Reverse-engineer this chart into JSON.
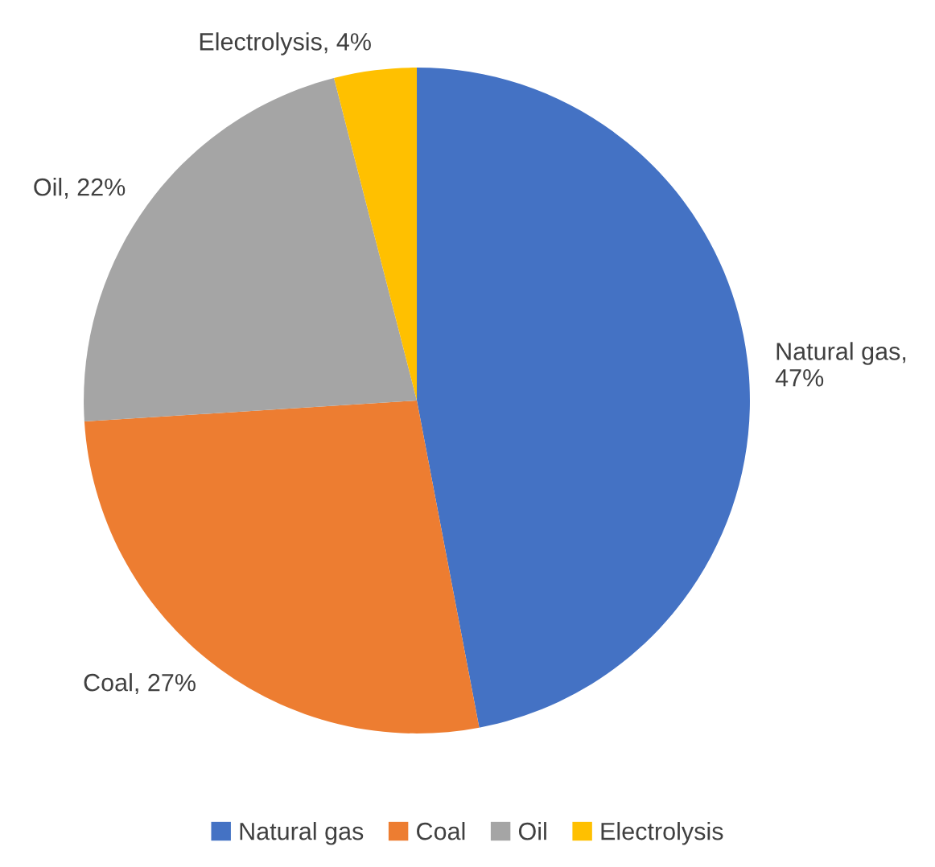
{
  "chart_data": {
    "type": "pie",
    "categories": [
      "Natural gas",
      "Coal",
      "Oil",
      "Electrolysis"
    ],
    "values": [
      47,
      27,
      22,
      4
    ],
    "colors": [
      "#4472c4",
      "#ed7d31",
      "#a5a5a5",
      "#ffc000"
    ],
    "value_labels": [
      "Natural gas,\n47%",
      "Coal, 27%",
      "Oil, 22%",
      "Electrolysis, 4%"
    ],
    "legend": "bottom"
  }
}
